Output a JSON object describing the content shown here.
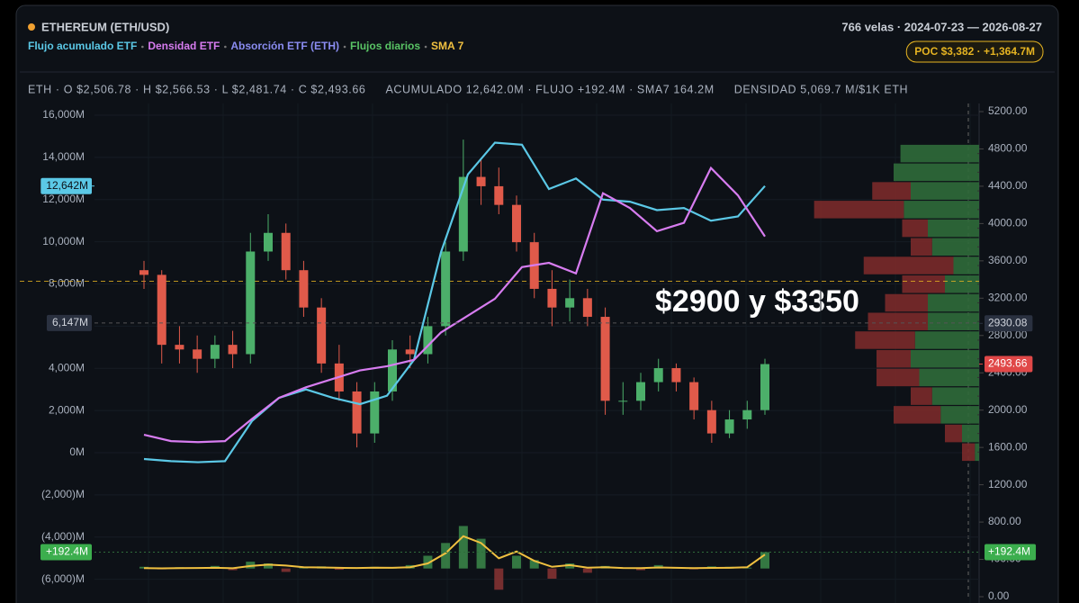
{
  "chart_data": {
    "type": "candlestick",
    "title": "ETHEREUM (ETH/USD)",
    "range_text": "766 velas · 2024-07-23 — 2026-08-27",
    "poc": {
      "value": 3382,
      "label": "POC $3,382 · +1,364.7M",
      "color": "#e6b422"
    },
    "stats": [
      "ETH · O $2,506.78 · H $2,566.53 · L $2,481.74 · C $2,493.66",
      "ACUMULADO 12,642.0M · FLUJO +192.4M · SMA7 164.2M",
      "DENSIDAD 5,069.7 M/$1K ETH"
    ],
    "annotation": "$2900 y $3350",
    "legend": [
      {
        "name": "Flujo acumulado ETF",
        "color": "#5bc8e6"
      },
      {
        "name": "Densidad ETF",
        "color": "#d77cf0"
      },
      {
        "name": "Absorción ETF (ETH)",
        "color": "#8a8cf0"
      },
      {
        "name": "Flujos diarios",
        "color": "#59c465"
      },
      {
        "name": "SMA 7",
        "color": "#f0c040"
      }
    ],
    "ylim": [
      -6000,
      16000
    ],
    "yticks": [
      {
        "value": 16000,
        "label": "16,000M"
      },
      {
        "value": 14000,
        "label": "14,000M"
      },
      {
        "value": 12000,
        "label": "12,000M"
      },
      {
        "value": 10000,
        "label": "10,000M"
      },
      {
        "value": 8000,
        "label": "8,000M"
      },
      {
        "value": 6000,
        "label": "6,000M"
      },
      {
        "value": 4000,
        "label": "4,000M"
      },
      {
        "value": 2000,
        "label": "2,000M"
      },
      {
        "value": 0,
        "label": "0M"
      },
      {
        "value": -2000,
        "label": "(2,000)M"
      },
      {
        "value": -4000,
        "label": "(4,000)M"
      },
      {
        "value": -6000,
        "label": "(6,000)M"
      }
    ],
    "y2lim": [
      0,
      5200
    ],
    "y2ticks": [
      {
        "value": 5200,
        "label": "5200.00"
      },
      {
        "value": 4800,
        "label": "4800.00"
      },
      {
        "value": 4400,
        "label": "4400.00"
      },
      {
        "value": 4000,
        "label": "4000.00"
      },
      {
        "value": 3600,
        "label": "3600.00"
      },
      {
        "value": 3200,
        "label": "3200.00"
      },
      {
        "value": 2800,
        "label": "2800.00"
      },
      {
        "value": 2400,
        "label": "2400.00"
      },
      {
        "value": 2000,
        "label": "2000.00"
      },
      {
        "value": 1600,
        "label": "1600.00"
      },
      {
        "value": 1200,
        "label": "1200.00"
      },
      {
        "value": 800,
        "label": "800.00"
      },
      {
        "value": 400,
        "label": "400.00"
      },
      {
        "value": 0,
        "label": "0.00"
      }
    ],
    "candles": {
      "open": [
        3500,
        3450,
        2700,
        2650,
        2550,
        2700,
        2600,
        3700,
        3900,
        3500,
        3100,
        2500,
        2200,
        1750,
        2200,
        2650,
        2600,
        2900,
        3700,
        4500,
        4400,
        4200,
        3800,
        3300,
        3100,
        3200,
        3000,
        2100,
        2100,
        2300,
        2450,
        2300,
        2000,
        1750,
        1900,
        2000
      ],
      "high": [
        3600,
        3500,
        2900,
        2800,
        2800,
        2850,
        3900,
        4100,
        4000,
        3600,
        3200,
        2700,
        2300,
        2300,
        2750,
        2800,
        3000,
        3800,
        4900,
        4700,
        4600,
        4300,
        3900,
        3500,
        3400,
        3300,
        3100,
        2300,
        2400,
        2550,
        2500,
        2350,
        2100,
        2000,
        2100,
        2550
      ],
      "low": [
        3300,
        2500,
        2500,
        2400,
        2450,
        2450,
        2500,
        3600,
        3400,
        3000,
        2400,
        2100,
        1600,
        1650,
        2100,
        2450,
        2500,
        2800,
        3600,
        4200,
        4100,
        3700,
        3200,
        2900,
        2950,
        2900,
        1950,
        1950,
        2000,
        2200,
        2200,
        1900,
        1650,
        1700,
        1800,
        1950
      ],
      "close": [
        3450,
        2700,
        2650,
        2550,
        2700,
        2600,
        3700,
        3900,
        3500,
        3100,
        2500,
        2200,
        1750,
        2200,
        2650,
        2600,
        2900,
        3700,
        4500,
        4400,
        4200,
        3800,
        3300,
        3100,
        3200,
        3000,
        2100,
        2100,
        2300,
        2450,
        2300,
        2000,
        1750,
        1900,
        2000,
        2493.66
      ],
      "up_color": "#4caf6a",
      "down_color": "#e05a4a"
    },
    "lines": [
      {
        "color": "#5bc8e6",
        "values": [
          -300,
          -400,
          -450,
          -400,
          1500,
          2600,
          3000,
          2600,
          2300,
          2700,
          4400,
          9500,
          13200,
          14700,
          14600,
          12500,
          13000,
          12000,
          11900,
          11500,
          11600,
          11000,
          11200,
          12642
        ]
      },
      {
        "color": "#d77cf0",
        "values": [
          850,
          550,
          500,
          550,
          1600,
          2600,
          3100,
          3500,
          3900,
          4100,
          4400,
          5700,
          6500,
          7300,
          8800,
          9000,
          8500,
          12300,
          11600,
          10500,
          10900,
          13500,
          12200,
          10250
        ]
      }
    ],
    "markers": [
      {
        "axis": "y",
        "value": 12642,
        "label": "12,642M",
        "color": "#5bc8e6",
        "text": "#0d1117"
      },
      {
        "axis": "y",
        "value": 6147,
        "label": "6,147M",
        "color": "#2a3140",
        "text": "#d0d4dc",
        "dashed": true
      },
      {
        "axis": "y2",
        "value": 2930.08,
        "label": "2930.08",
        "color": "#2a3140",
        "text": "#d0d4dc"
      },
      {
        "axis": "y2",
        "value": 2493.66,
        "label": "2493.66",
        "color": "#e04848",
        "text": "#ffffff"
      }
    ],
    "pane": {
      "ylim": [
        -300,
        600
      ],
      "flows": [
        20,
        -10,
        15,
        5,
        30,
        -20,
        80,
        60,
        -40,
        10,
        25,
        -15,
        5,
        20,
        10,
        40,
        150,
        300,
        500,
        350,
        -250,
        150,
        100,
        -120,
        60,
        -50,
        30,
        10,
        -20,
        40,
        15,
        -10,
        25,
        20,
        10,
        192.4
      ],
      "sma": [
        5,
        2,
        4,
        6,
        8,
        3,
        30,
        45,
        35,
        15,
        12,
        8,
        6,
        10,
        9,
        15,
        60,
        180,
        380,
        300,
        120,
        200,
        90,
        20,
        40,
        10,
        15,
        6,
        4,
        12,
        8,
        5,
        7,
        9,
        15,
        164.2
      ],
      "marker": {
        "value": 192.4,
        "label": "+192.4M"
      }
    },
    "profile": {
      "levels": [
        4750,
        4550,
        4350,
        4150,
        3950,
        3750,
        3550,
        3350,
        3150,
        2950,
        2750,
        2550,
        2350,
        2150,
        1950,
        1750,
        1550
      ],
      "buy": [
        92,
        100,
        80,
        88,
        60,
        55,
        30,
        40,
        60,
        60,
        75,
        80,
        70,
        55,
        45,
        20,
        5
      ],
      "sell": [
        0,
        0,
        45,
        105,
        30,
        25,
        105,
        50,
        50,
        70,
        70,
        40,
        50,
        25,
        55,
        20,
        15
      ],
      "buy_color": "#2f6b3a",
      "sell_color": "#7a2a2a"
    }
  }
}
